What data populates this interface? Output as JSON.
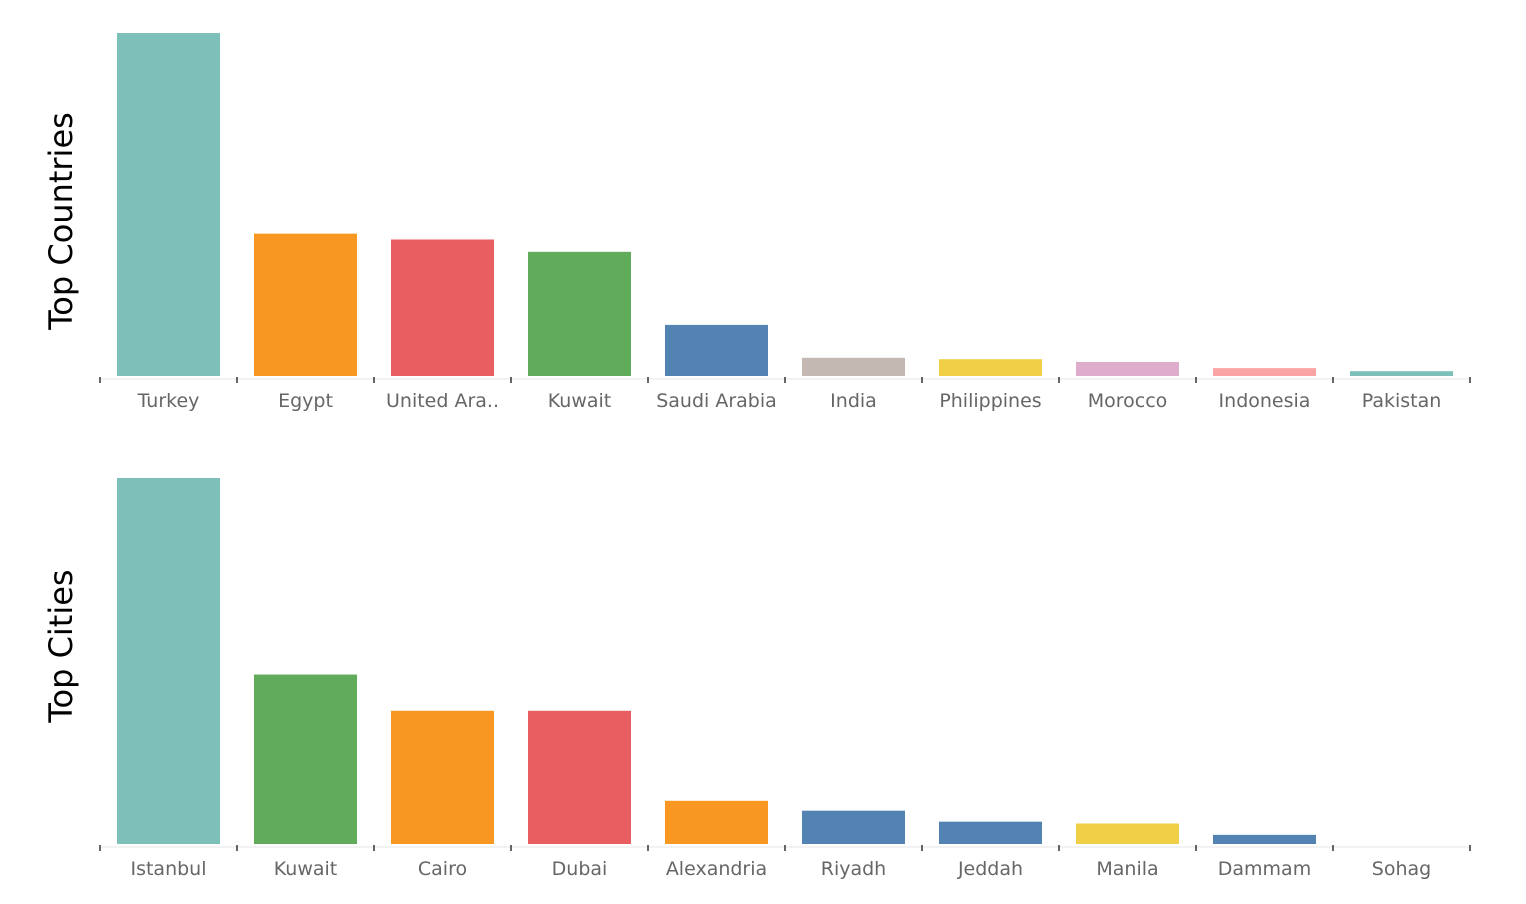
{
  "chart_data": [
    {
      "type": "bar",
      "ylabel": "Top Countries",
      "categories": [
        "Turkey",
        "Egypt",
        "United Ara..",
        "Kuwait",
        "Saudi Arabia",
        "India",
        "Philippines",
        "Morocco",
        "Indonesia",
        "Pakistan"
      ],
      "values": [
        100,
        41.5,
        39.8,
        36.2,
        14.9,
        5.3,
        4.9,
        4.1,
        2.3,
        1.4
      ],
      "colors": [
        "#7dbfb9",
        "#f89823",
        "#e95f61",
        "#61ac5a",
        "#5283b3",
        "#c3b8b2",
        "#f1cf47",
        "#ddadcb",
        "#fba4a6",
        "#7dbfb9"
      ],
      "ylim": [
        0,
        100
      ],
      "grid": false,
      "legend": "none"
    },
    {
      "type": "bar",
      "ylabel": "Top Cities",
      "categories": [
        "Istanbul",
        "Kuwait",
        "Cairo",
        "Dubai",
        "Alexandria",
        "Riyadh",
        "Jeddah",
        "Manila",
        "Dammam",
        "Sohag"
      ],
      "values": [
        100,
        46.3,
        36.4,
        36.4,
        11.8,
        9.1,
        6.1,
        5.6,
        2.5,
        0
      ],
      "colors": [
        "#7dbfb9",
        "#61ac5a",
        "#f89823",
        "#e95f61",
        "#f89823",
        "#5283b3",
        "#5283b3",
        "#f1cf47",
        "#5283b3",
        "#5283b3"
      ],
      "ylim": [
        0,
        100
      ],
      "grid": false,
      "legend": "none"
    }
  ]
}
